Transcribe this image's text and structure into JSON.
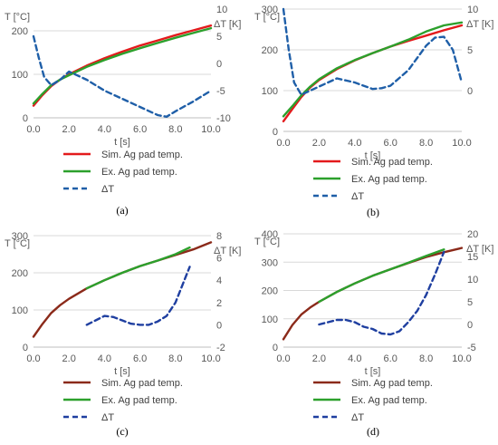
{
  "chart_data": [
    {
      "type": "line",
      "caption": "(a)",
      "xlabel": "t [s]",
      "ylabel_left": "T [°C]",
      "ylabel_right": "ΔT [K]",
      "xlim": [
        0,
        10
      ],
      "xticks": [
        "0.0",
        "2.0",
        "4.0",
        "6.0",
        "8.0",
        "10.0"
      ],
      "ylim_left": [
        0,
        250
      ],
      "yticks_left": [
        0,
        100,
        200
      ],
      "ylim_right": [
        -10,
        10
      ],
      "yticks_right": [
        -10,
        -5,
        0,
        5,
        10
      ],
      "grid": true,
      "legend_position": "bottom",
      "series": [
        {
          "name": "Sim. Ag pad temp.",
          "axis": "left",
          "color": "#e31a1c",
          "dash": "none",
          "x": [
            0,
            0.5,
            1,
            1.5,
            2,
            3,
            4,
            5,
            6,
            7,
            8,
            9,
            10
          ],
          "y": [
            28,
            52,
            73,
            88,
            100,
            120,
            137,
            152,
            166,
            178,
            190,
            201,
            212
          ]
        },
        {
          "name": "Ex. Ag pad temp.",
          "axis": "left",
          "color": "#2ca02c",
          "dash": "none",
          "x": [
            0,
            0.5,
            1,
            1.5,
            2,
            3,
            4,
            5,
            6,
            7,
            8,
            9,
            10
          ],
          "y": [
            33,
            55,
            75,
            88,
            98,
            117,
            133,
            147,
            160,
            172,
            184,
            195,
            206
          ]
        },
        {
          "name": "ΔT",
          "axis": "right",
          "color": "#1f5fa8",
          "dash": "6,4",
          "x": [
            0,
            0.3,
            0.6,
            1,
            1.5,
            2,
            3,
            4,
            5,
            6,
            7,
            7.5,
            8,
            9,
            10
          ],
          "y": [
            5,
            1,
            -2.5,
            -4,
            -3,
            -1.5,
            -3,
            -5,
            -6.5,
            -8,
            -9.5,
            -9.8,
            -8.8,
            -7,
            -5
          ]
        }
      ]
    },
    {
      "type": "line",
      "caption": "(b)",
      "xlabel": "t [s]",
      "ylabel_left": "T [°C]",
      "ylabel_right": "ΔT [K]",
      "xlim": [
        0,
        10
      ],
      "xticks": [
        "0.0",
        "2.0",
        "4.0",
        "6.0",
        "8.0",
        "10.0"
      ],
      "ylim_left": [
        0,
        300
      ],
      "yticks_left": [
        0,
        100,
        200,
        300
      ],
      "ylim_right": [
        -5,
        10
      ],
      "yticks_right": [
        0,
        5,
        10
      ],
      "grid": true,
      "legend_position": "bottom",
      "series": [
        {
          "name": "Sim. Ag pad temp.",
          "axis": "left",
          "color": "#e31a1c",
          "dash": "none",
          "x": [
            0,
            0.5,
            1,
            1.5,
            2,
            3,
            4,
            5,
            6,
            7,
            8,
            9,
            10
          ],
          "y": [
            25,
            55,
            84,
            108,
            126,
            153,
            174,
            192,
            208,
            222,
            235,
            248,
            260
          ]
        },
        {
          "name": "Ex. Ag pad temp.",
          "axis": "left",
          "color": "#2ca02c",
          "dash": "none",
          "x": [
            0,
            0.5,
            1,
            1.5,
            2,
            3,
            4,
            5,
            6,
            7,
            8,
            9,
            10
          ],
          "y": [
            37,
            62,
            88,
            110,
            128,
            155,
            175,
            192,
            208,
            225,
            245,
            260,
            267
          ]
        },
        {
          "name": "ΔT",
          "axis": "right",
          "color": "#1f5fa8",
          "dash": "6,4",
          "x": [
            0,
            0.3,
            0.6,
            1,
            1.5,
            2,
            3,
            4,
            5,
            5.5,
            6,
            7,
            8,
            8.5,
            9,
            9.5,
            10
          ],
          "y": [
            10,
            5,
            1,
            -0.5,
            0,
            0.5,
            1.5,
            1,
            0.2,
            0.3,
            0.6,
            2.5,
            5.5,
            6.5,
            6.6,
            5,
            1
          ]
        }
      ]
    },
    {
      "type": "line",
      "caption": "(c)",
      "xlabel": "t [s]",
      "ylabel_left": "T [°C]",
      "ylabel_right": "ΔT [K]",
      "xlim": [
        0,
        10
      ],
      "xticks": [
        "0.0",
        "2.0",
        "4.0",
        "6.0",
        "8.0",
        "10.0"
      ],
      "ylim_left": [
        0,
        300
      ],
      "yticks_left": [
        0,
        100,
        200,
        300
      ],
      "ylim_right": [
        -2,
        8
      ],
      "yticks_right": [
        -2,
        0,
        2,
        4,
        6,
        8
      ],
      "grid": true,
      "legend_position": "bottom",
      "series": [
        {
          "name": "Sim. Ag pad temp.",
          "axis": "left",
          "color": "#8b2a1a",
          "dash": "none",
          "x": [
            0,
            0.5,
            1,
            1.5,
            2,
            3,
            4,
            5,
            6,
            7,
            8,
            9,
            10
          ],
          "y": [
            28,
            62,
            92,
            113,
            130,
            158,
            180,
            200,
            218,
            233,
            248,
            263,
            282
          ]
        },
        {
          "name": "Ex. Ag pad temp.",
          "axis": "left",
          "color": "#2ca02c",
          "dash": "none",
          "x": [
            3,
            4,
            5,
            6,
            7,
            8,
            8.8
          ],
          "y": [
            158,
            180,
            200,
            218,
            233,
            250,
            268
          ]
        },
        {
          "name": "ΔT",
          "axis": "right",
          "color": "#1f3fa0",
          "dash": "6,4",
          "x": [
            3,
            3.5,
            4,
            4.5,
            5,
            5.5,
            6,
            6.5,
            7,
            7.5,
            8,
            8.5,
            8.8
          ],
          "y": [
            0,
            0.4,
            0.8,
            0.7,
            0.4,
            0.1,
            0,
            0,
            0.3,
            0.8,
            2.0,
            4,
            5.2
          ]
        }
      ]
    },
    {
      "type": "line",
      "caption": "(d)",
      "xlabel": "t [s]",
      "ylabel_left": "T [°C]",
      "ylabel_right": "ΔT [K]",
      "xlim": [
        0,
        10
      ],
      "xticks": [
        "0.0",
        "2.0",
        "4.0",
        "6.0",
        "8.0",
        "10.0"
      ],
      "ylim_left": [
        0,
        400
      ],
      "yticks_left": [
        0,
        100,
        200,
        300,
        400
      ],
      "ylim_right": [
        -5,
        20
      ],
      "yticks_right": [
        -5,
        0,
        5,
        10,
        15,
        20
      ],
      "grid": true,
      "legend_position": "bottom",
      "series": [
        {
          "name": "Sim. Ag pad temp.",
          "axis": "left",
          "color": "#8b2a1a",
          "dash": "none",
          "x": [
            0,
            0.5,
            1,
            1.5,
            2,
            3,
            4,
            5,
            6,
            7,
            8,
            9,
            10
          ],
          "y": [
            28,
            78,
            115,
            140,
            160,
            195,
            225,
            252,
            275,
            297,
            318,
            335,
            350
          ]
        },
        {
          "name": "Ex. Ag pad temp.",
          "axis": "left",
          "color": "#2ca02c",
          "dash": "none",
          "x": [
            2,
            3,
            4,
            5,
            6,
            7,
            8,
            9
          ],
          "y": [
            160,
            195,
            225,
            252,
            275,
            298,
            322,
            345
          ]
        },
        {
          "name": "ΔT",
          "axis": "right",
          "color": "#1f3fa0",
          "dash": "6,4",
          "x": [
            2,
            2.5,
            3,
            3.5,
            4,
            4.5,
            5,
            5.5,
            6,
            6.5,
            7,
            7.5,
            8,
            8.5,
            9
          ],
          "y": [
            0,
            0.5,
            1,
            1,
            0.5,
            -0.5,
            -1,
            -2,
            -2.2,
            -1.5,
            0.5,
            3,
            6.5,
            11,
            16
          ]
        }
      ]
    }
  ]
}
